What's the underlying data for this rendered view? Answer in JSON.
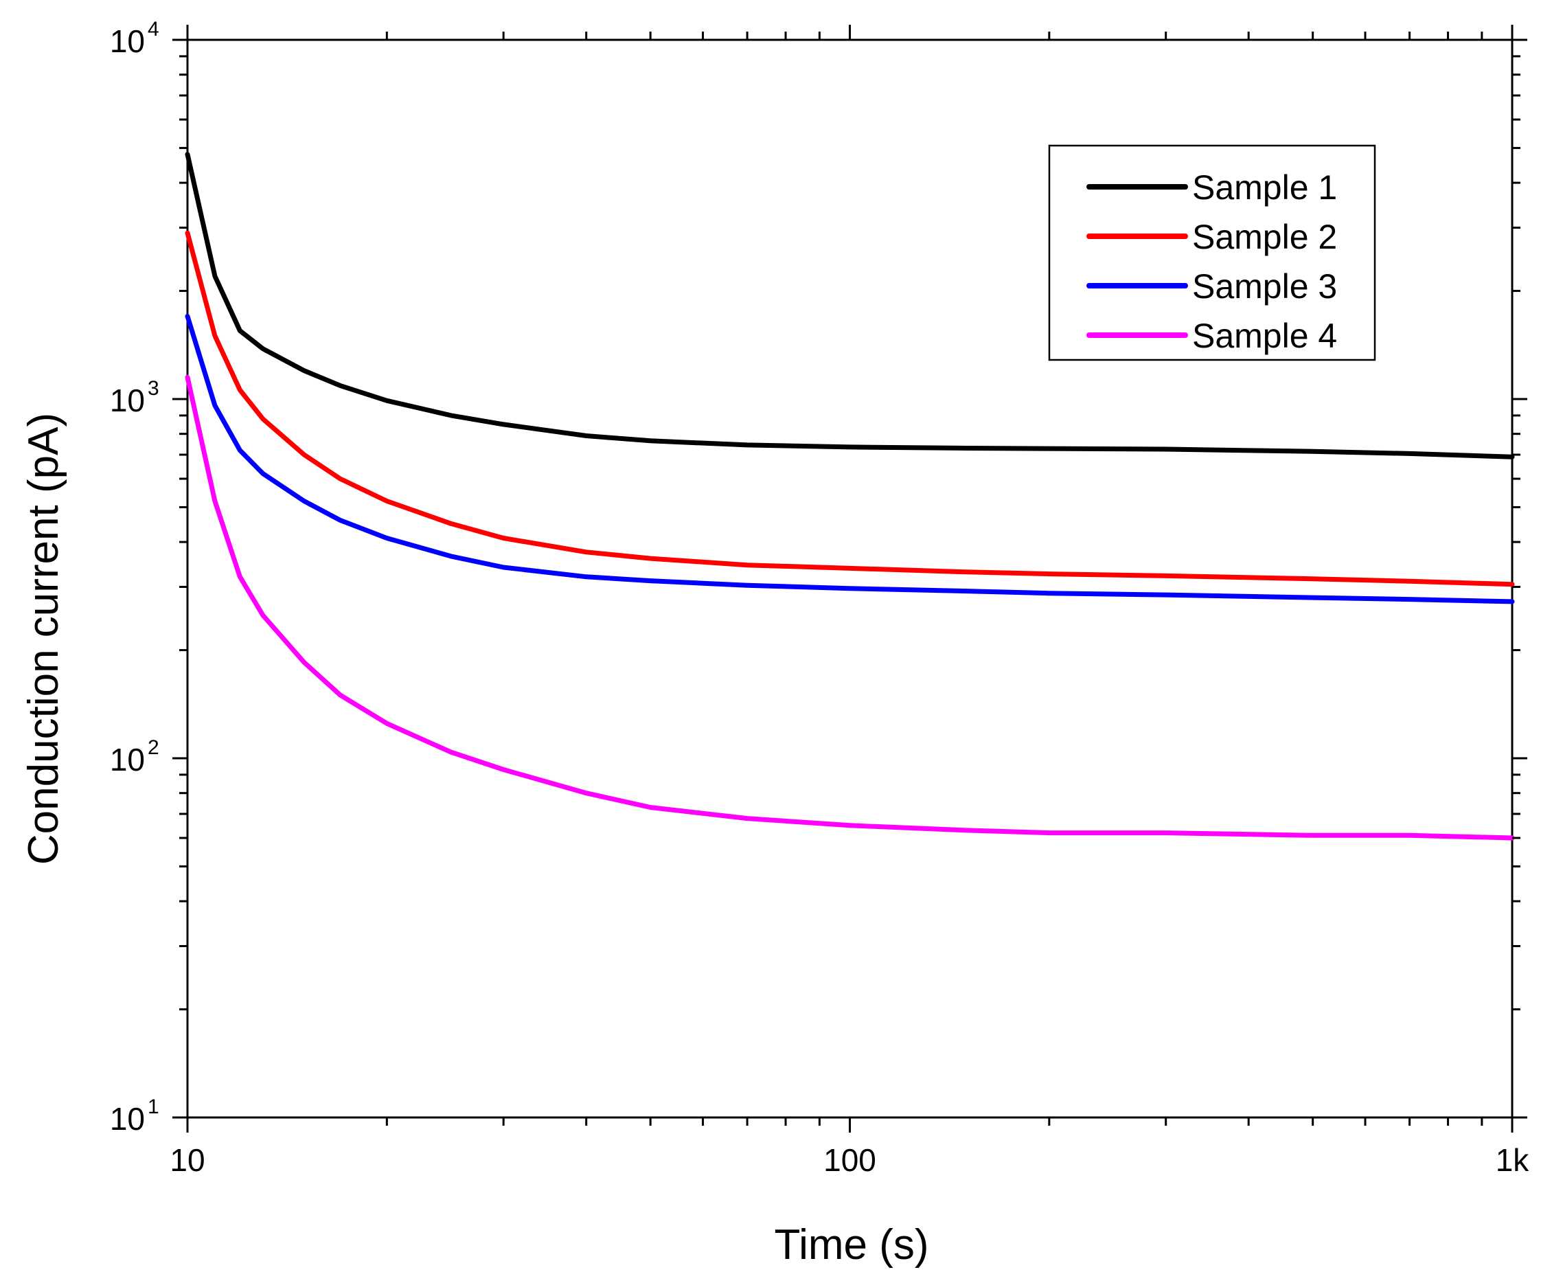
{
  "chart_data": {
    "type": "line",
    "title": "",
    "xlabel": "Time (s)",
    "ylabel": "Conduction current (pA)",
    "xscale": "log",
    "yscale": "log",
    "xlim": [
      10,
      1000
    ],
    "ylim": [
      10,
      10000
    ],
    "x_major_ticks": [
      {
        "value": 10,
        "label": "10"
      },
      {
        "value": 100,
        "label": "100"
      },
      {
        "value": 1000,
        "label": "1k"
      }
    ],
    "y_major_ticks": [
      {
        "value": 10,
        "base": "10",
        "exp": "1"
      },
      {
        "value": 100,
        "base": "10",
        "exp": "2"
      },
      {
        "value": 1000,
        "base": "10",
        "exp": "3"
      },
      {
        "value": 10000,
        "base": "10",
        "exp": "4"
      }
    ],
    "legend_position": "top-right",
    "grid": false,
    "x": [
      10,
      11,
      12,
      13,
      15,
      17,
      20,
      25,
      30,
      40,
      50,
      70,
      100,
      150,
      200,
      300,
      500,
      700,
      1000
    ],
    "series": [
      {
        "name": "Sample 1",
        "color": "#000000",
        "values": [
          4800,
          2200,
          1550,
          1380,
          1200,
          1090,
          990,
          900,
          850,
          790,
          765,
          745,
          735,
          730,
          728,
          725,
          715,
          705,
          690
        ]
      },
      {
        "name": "Sample 2",
        "color": "#ff0000",
        "values": [
          2900,
          1500,
          1060,
          880,
          700,
          600,
          520,
          450,
          410,
          375,
          360,
          345,
          338,
          330,
          326,
          322,
          316,
          311,
          305
        ]
      },
      {
        "name": "Sample 3",
        "color": "#0000ff",
        "values": [
          1700,
          960,
          720,
          620,
          520,
          460,
          410,
          365,
          340,
          320,
          312,
          303,
          297,
          292,
          288,
          285,
          280,
          277,
          273
        ]
      },
      {
        "name": "Sample 4",
        "color": "#ff00ff",
        "values": [
          1150,
          520,
          320,
          250,
          185,
          150,
          125,
          104,
          93,
          80,
          73,
          68,
          65,
          63,
          62,
          62,
          61,
          61,
          60
        ]
      }
    ]
  }
}
